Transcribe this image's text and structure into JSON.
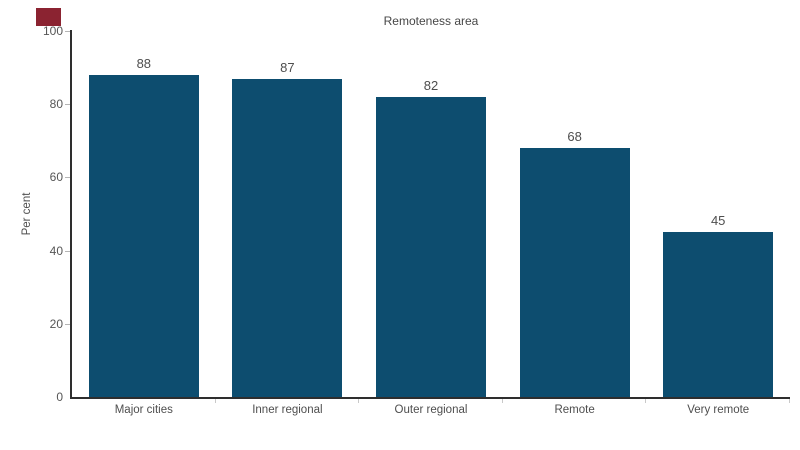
{
  "chart_data": {
    "type": "bar",
    "title": "Remoteness area",
    "categories": [
      "Major cities",
      "Inner regional",
      "Outer regional",
      "Remote",
      "Very remote"
    ],
    "values": [
      88,
      87,
      82,
      68,
      45
    ],
    "xlabel": "",
    "ylabel": "Per cent",
    "ylim": [
      0,
      100
    ],
    "yticks": [
      0,
      20,
      40,
      60,
      80,
      100
    ],
    "grid": false,
    "legend": "none",
    "data_labels": true
  },
  "colors": {
    "bar": "#0D4D6F",
    "axis_line": "#2E2E2E",
    "label_text": "#4E4E4E",
    "boundary_tick": "#C9C9C9",
    "y_tick_mark": "#B5B5B5",
    "brand_mark": "#8B2331"
  }
}
